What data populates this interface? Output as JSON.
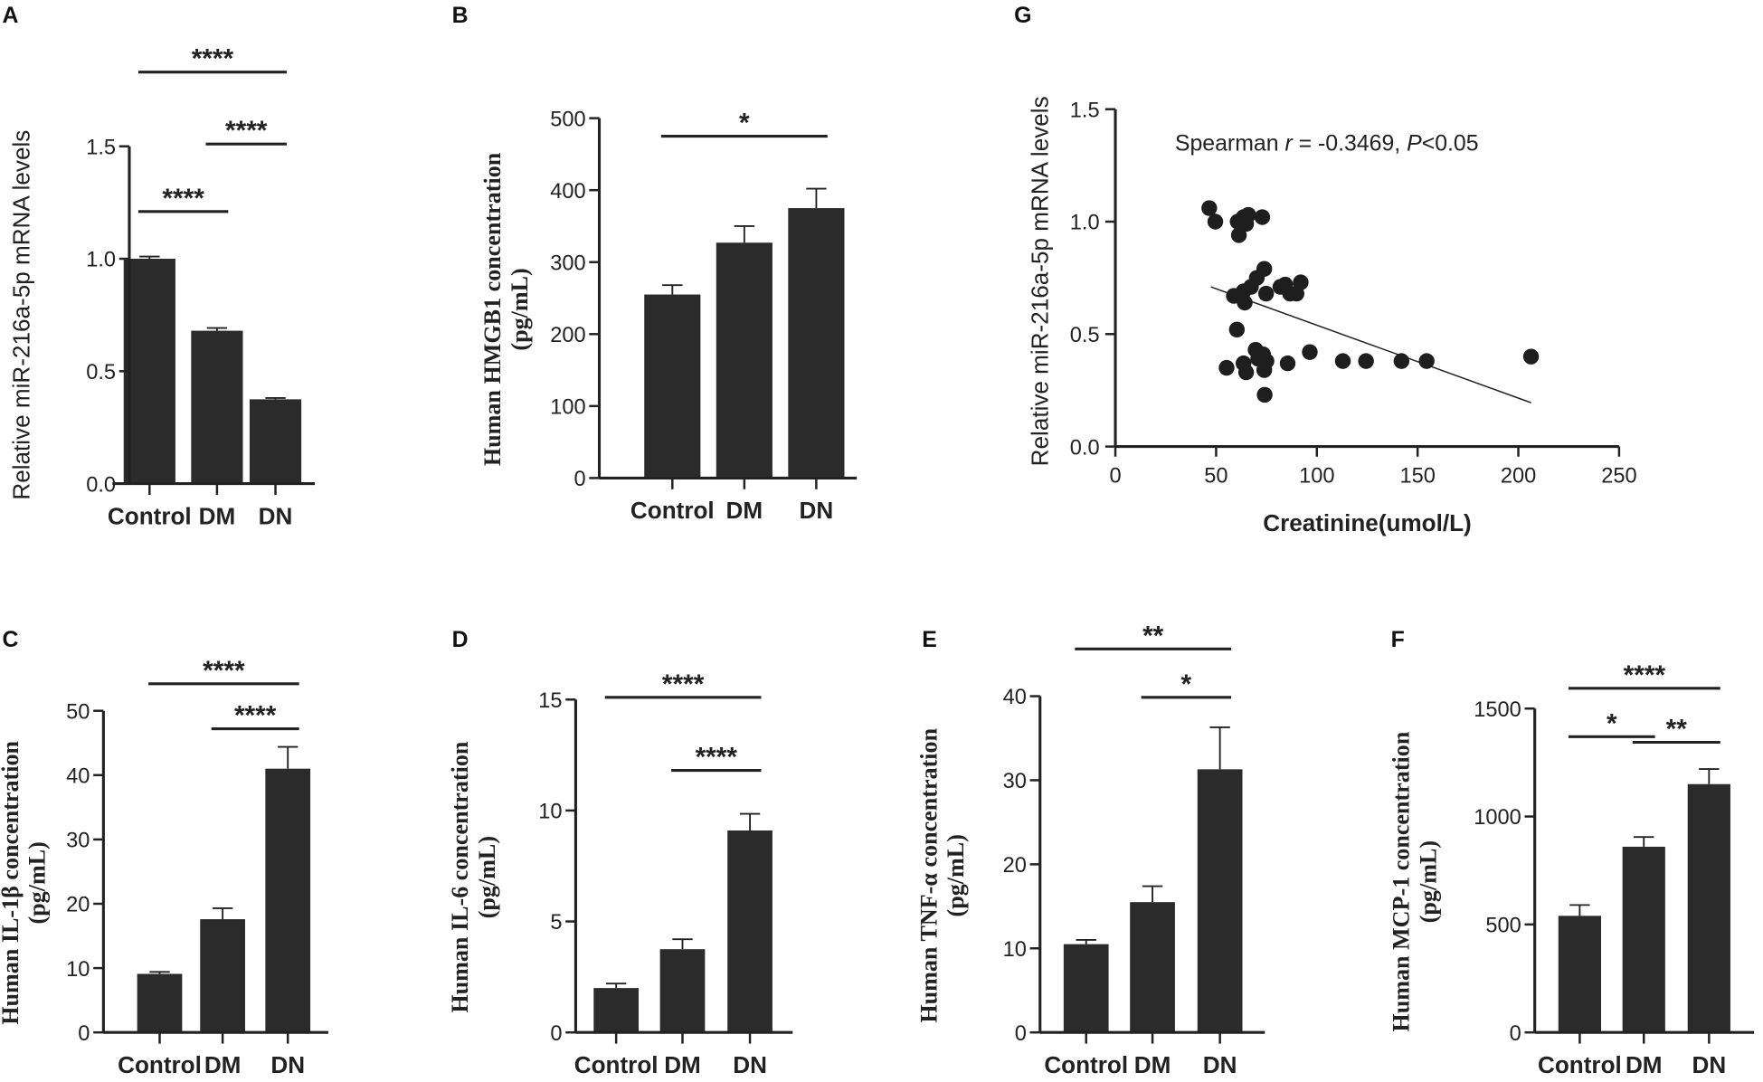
{
  "chart_data": [
    {
      "panel": "A",
      "type": "bar",
      "categories": [
        "Control",
        "DM",
        "DN"
      ],
      "values": [
        1.0,
        0.68,
        0.375
      ],
      "errors": [
        0.01,
        0.012,
        0.006
      ],
      "ylabel": "Relative miR-216a-5p mRNA levels",
      "ylabel2": "",
      "ylim": [
        0,
        1.5
      ],
      "ticks": [
        "0.0",
        "0.5",
        "1.0",
        "1.5"
      ],
      "tick_values": [
        0,
        0.5,
        1.0,
        1.5
      ],
      "significance": [
        {
          "from": 0,
          "to": 2,
          "label": "****"
        },
        {
          "from": 1,
          "to": 2,
          "label": "****"
        },
        {
          "from": 0,
          "to": 1,
          "label": "****"
        }
      ]
    },
    {
      "panel": "B",
      "type": "bar",
      "categories": [
        "Control",
        "DM",
        "DN"
      ],
      "values": [
        255,
        327,
        375
      ],
      "errors": [
        13,
        23,
        27
      ],
      "ylabel": "Human HMGB1 concentration",
      "ylabel2": "(pg/mL)",
      "ylim": [
        0,
        500
      ],
      "ticks": [
        "0",
        "100",
        "200",
        "300",
        "400",
        "500"
      ],
      "tick_values": [
        0,
        100,
        200,
        300,
        400,
        500
      ],
      "significance": [
        {
          "from": 0,
          "to": 2,
          "label": "*"
        }
      ]
    },
    {
      "panel": "G",
      "type": "scatter",
      "xlabel": "Creatinine(umol/L)",
      "ylabel": "Relative miR-216a-5p mRNA levels",
      "xlim": [
        0,
        250
      ],
      "ylim": [
        0,
        1.5
      ],
      "xticks": [
        "0",
        "50",
        "100",
        "150",
        "200",
        "250"
      ],
      "xtick_values": [
        0,
        50,
        100,
        150,
        200,
        250
      ],
      "yticks": [
        "0.0",
        "0.5",
        "1.0",
        "1.5"
      ],
      "ytick_values": [
        0,
        0.5,
        1.0,
        1.5
      ],
      "annotation": {
        "prefix": "Spearman ",
        "r_symbol": "r",
        "r_text": " = -0.3469, ",
        "p_symbol": "P",
        "p_text": "<0.05"
      },
      "points": [
        [
          46.6,
          1.06
        ],
        [
          49.6,
          1.0
        ],
        [
          60.7,
          1.0
        ],
        [
          63.6,
          1.02
        ],
        [
          66,
          1.03
        ],
        [
          64.9,
          0.99
        ],
        [
          72.9,
          1.02
        ],
        [
          61.3,
          0.94
        ],
        [
          73.9,
          0.79
        ],
        [
          70.2,
          0.75
        ],
        [
          67.3,
          0.71
        ],
        [
          63.6,
          0.69
        ],
        [
          58.8,
          0.67
        ],
        [
          64.2,
          0.64
        ],
        [
          74.8,
          0.68
        ],
        [
          81.9,
          0.71
        ],
        [
          84.3,
          0.72
        ],
        [
          86.7,
          0.68
        ],
        [
          89.9,
          0.68
        ],
        [
          92,
          0.73
        ],
        [
          60.3,
          0.52
        ],
        [
          55.2,
          0.35
        ],
        [
          63.6,
          0.37
        ],
        [
          64.9,
          0.33
        ],
        [
          69.6,
          0.43
        ],
        [
          70.9,
          0.39
        ],
        [
          73.3,
          0.41
        ],
        [
          75,
          0.38
        ],
        [
          73.9,
          0.34
        ],
        [
          85.5,
          0.37
        ],
        [
          96.5,
          0.42
        ],
        [
          112.9,
          0.38
        ],
        [
          124.4,
          0.38
        ],
        [
          142,
          0.38
        ],
        [
          154.5,
          0.38
        ],
        [
          206.3,
          0.4
        ],
        [
          74.1,
          0.23
        ]
      ],
      "regression": [
        [
          47.4,
          0.71
        ],
        [
          206.3,
          0.195
        ]
      ]
    },
    {
      "panel": "C",
      "type": "bar",
      "categories": [
        "Control",
        "DM",
        "DN"
      ],
      "values": [
        9.1,
        17.6,
        41.0
      ],
      "errors": [
        0.3,
        1.7,
        3.4
      ],
      "ylabel": "Human IL-1β concentration",
      "ylabel2": "(pg/mL)",
      "ylim": [
        0,
        50
      ],
      "ticks": [
        "0",
        "10",
        "20",
        "30",
        "40",
        "50"
      ],
      "tick_values": [
        0,
        10,
        20,
        30,
        40,
        50
      ],
      "significance": [
        {
          "from": 0,
          "to": 2,
          "label": "****"
        },
        {
          "from": 1,
          "to": 2,
          "label": "****"
        }
      ]
    },
    {
      "panel": "D",
      "type": "bar",
      "categories": [
        "Control",
        "DM",
        "DN"
      ],
      "values": [
        2.0,
        3.75,
        9.1
      ],
      "errors": [
        0.2,
        0.45,
        0.75
      ],
      "ylabel": "Human IL-6 concentration",
      "ylabel2": "(pg/mL)",
      "ylim": [
        0,
        15
      ],
      "ticks": [
        "0",
        "5",
        "10",
        "15"
      ],
      "tick_values": [
        0,
        5,
        10,
        15
      ],
      "significance": [
        {
          "from": 0,
          "to": 2,
          "label": "****"
        },
        {
          "from": 1,
          "to": 2,
          "label": "****"
        }
      ]
    },
    {
      "panel": "E",
      "type": "bar",
      "categories": [
        "Control",
        "DM",
        "DN"
      ],
      "values": [
        10.5,
        15.5,
        31.3
      ],
      "errors": [
        0.5,
        1.9,
        5.0
      ],
      "ylabel": "Human TNF-α concentration",
      "ylabel2": "(pg/mL)",
      "ylim": [
        0,
        40
      ],
      "ticks": [
        "0",
        "10",
        "20",
        "30",
        "40"
      ],
      "tick_values": [
        0,
        10,
        20,
        30,
        40
      ],
      "significance": [
        {
          "from": 0,
          "to": 2,
          "label": "**"
        },
        {
          "from": 1,
          "to": 2,
          "label": "*"
        }
      ]
    },
    {
      "panel": "F",
      "type": "bar",
      "categories": [
        "Control",
        "DM",
        "DN"
      ],
      "values": [
        540,
        860,
        1150
      ],
      "errors": [
        50,
        45,
        70
      ],
      "ylabel": "Human MCP-1 concentration",
      "ylabel2": "(pg/mL)",
      "ylim": [
        0,
        1500
      ],
      "ticks": [
        "0",
        "500",
        "1000",
        "1500"
      ],
      "tick_values": [
        0,
        500,
        1000,
        1500
      ],
      "significance": [
        {
          "from": 0,
          "to": 2,
          "label": "****"
        },
        {
          "from": 1,
          "to": 2,
          "label": "**"
        },
        {
          "from": 0,
          "to": 1,
          "label": "*"
        }
      ]
    }
  ],
  "colors": {
    "bar": "#2b2b2b",
    "axis": "#222222",
    "point": "#1e1e1e"
  }
}
